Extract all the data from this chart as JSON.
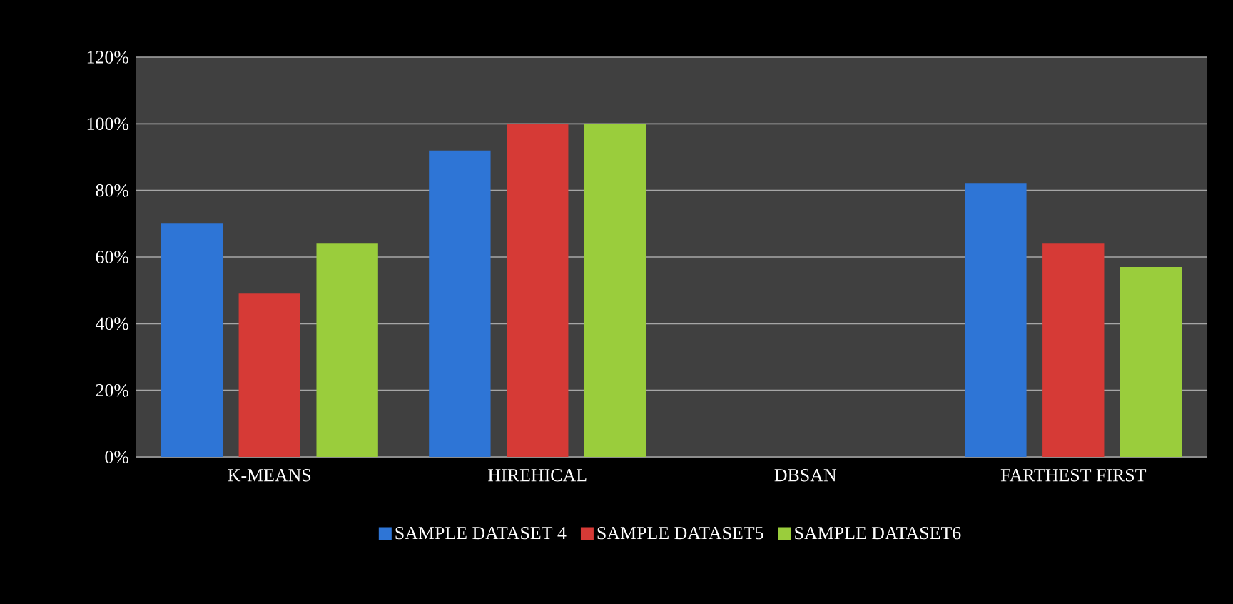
{
  "chart_data": {
    "type": "bar",
    "categories": [
      "K-MEANS",
      "HIREHICAL",
      "DBSAN",
      "FARTHEST FIRST"
    ],
    "series": [
      {
        "name": "SAMPLE DATASET 4",
        "color": "#2e75d6",
        "values": [
          70,
          92,
          0,
          82
        ]
      },
      {
        "name": "SAMPLE DATASET5",
        "color": "#d63a36",
        "values": [
          49,
          100,
          0,
          64
        ]
      },
      {
        "name": "SAMPLE DATASET6",
        "color": "#9acd3c",
        "values": [
          64,
          100,
          0,
          57
        ]
      }
    ],
    "ylim": [
      0,
      120
    ],
    "yticks": [
      {
        "value": 0,
        "label": "0%"
      },
      {
        "value": 20,
        "label": "20%"
      },
      {
        "value": 40,
        "label": "40%"
      },
      {
        "value": 60,
        "label": "60%"
      },
      {
        "value": 80,
        "label": "80%"
      },
      {
        "value": 100,
        "label": "100%"
      },
      {
        "value": 120,
        "label": "120%"
      }
    ],
    "grid": "y",
    "legend": "bottom"
  }
}
